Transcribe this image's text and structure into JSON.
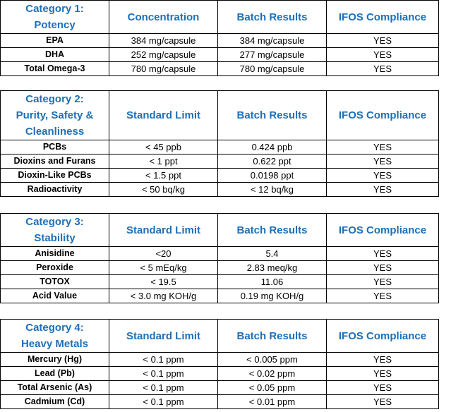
{
  "sections": [
    {
      "category_lines": [
        "Category 1:",
        "Potency"
      ],
      "columns": [
        "Concentration",
        "Batch Results",
        "IFOS Compliance"
      ],
      "rows": [
        {
          "label": "EPA",
          "limit": "384 mg/capsule",
          "result": "384 mg/capsule",
          "compliance": "YES"
        },
        {
          "label": "DHA",
          "limit": "252 mg/capsule",
          "result": "277 mg/capsule",
          "compliance": "YES"
        },
        {
          "label": "Total Omega-3",
          "limit": "780 mg/capsule",
          "result": "780 mg/capsule",
          "compliance": "YES"
        }
      ]
    },
    {
      "category_lines": [
        "Category 2:",
        "Purity, Safety &",
        "Cleanliness"
      ],
      "columns": [
        "Standard Limit",
        "Batch Results",
        "IFOS Compliance"
      ],
      "rows": [
        {
          "label": "PCBs",
          "limit": "< 45 ppb",
          "result": "0.424 ppb",
          "compliance": "YES"
        },
        {
          "label": "Dioxins and Furans",
          "limit": "< 1 ppt",
          "result": "0.622 ppt",
          "compliance": "YES"
        },
        {
          "label": "Dioxin-Like PCBs",
          "limit": "< 1.5 ppt",
          "result": "0.0198 ppt",
          "compliance": "YES"
        },
        {
          "label": "Radioactivity",
          "limit": "< 50 bq/kg",
          "result": "< 12 bq/kg",
          "compliance": "YES"
        }
      ]
    },
    {
      "category_lines": [
        "Category 3:",
        "Stability"
      ],
      "columns": [
        "Standard Limit",
        "Batch Results",
        "IFOS Compliance"
      ],
      "rows": [
        {
          "label": "Anisidine",
          "limit": "<20",
          "result": "5.4",
          "compliance": "YES"
        },
        {
          "label": "Peroxide",
          "limit": "< 5 mEq/kg",
          "result": "2.83 meq/kg",
          "compliance": "YES"
        },
        {
          "label": "TOTOX",
          "limit": "< 19.5",
          "result": "11.06",
          "compliance": "YES"
        },
        {
          "label": "Acid Value",
          "limit": "< 3.0 mg KOH/g",
          "result": "0.19 mg KOH/g",
          "compliance": "YES"
        }
      ]
    },
    {
      "category_lines": [
        "Category 4:",
        "Heavy Metals"
      ],
      "columns": [
        "Standard Limit",
        "Batch Results",
        "IFOS Compliance"
      ],
      "rows": [
        {
          "label": "Mercury (Hg)",
          "limit": "< 0.1 ppm",
          "result": "< 0.005 ppm",
          "compliance": "YES"
        },
        {
          "label": "Lead (Pb)",
          "limit": "< 0.1 ppm",
          "result": "< 0.02 ppm",
          "compliance": "YES"
        },
        {
          "label": "Total Arsenic (As)",
          "limit": "< 0.1 ppm",
          "result": "< 0.05 ppm",
          "compliance": "YES"
        },
        {
          "label": "Cadmium (Cd)",
          "limit": "< 0.1 ppm",
          "result": "< 0.01 ppm",
          "compliance": "YES"
        }
      ]
    }
  ]
}
